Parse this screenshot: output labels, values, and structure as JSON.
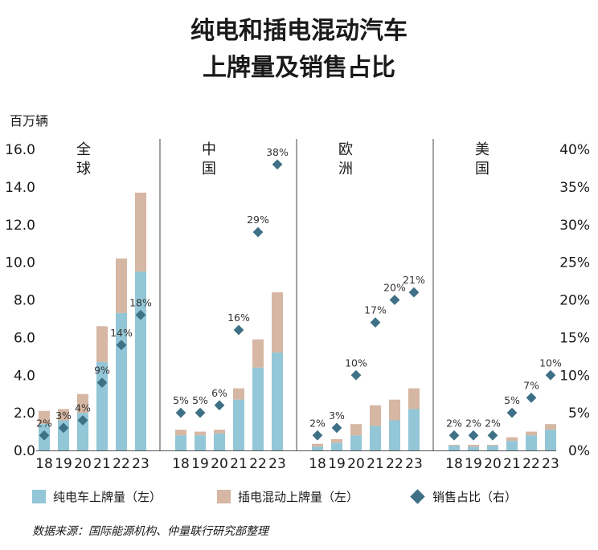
{
  "chart_data": {
    "type": "bar",
    "title_lines": [
      "纯电和插电混动汽车",
      "上牌量及销售占比"
    ],
    "y_left_unit": "百万辆",
    "y_left_ticks": [
      "0.0",
      "2.0",
      "4.0",
      "6.0",
      "8.0",
      "10.0",
      "12.0",
      "14.0",
      "16.0"
    ],
    "y_right_ticks": [
      "0%",
      "5%",
      "10%",
      "15%",
      "20%",
      "25%",
      "30%",
      "35%",
      "40%"
    ],
    "ylim_left": [
      0,
      16
    ],
    "ylim_right": [
      0,
      40
    ],
    "categories": [
      "18",
      "19",
      "20",
      "21",
      "22",
      "23"
    ],
    "series_names": {
      "bev": "纯电车上牌量（左）",
      "phev": "插电混动上牌量（左）",
      "share": "销售占比（右）"
    },
    "colors": {
      "bev": "#93c6d6",
      "phev": "#d6b7a3",
      "share": "#3e7086"
    },
    "panels": [
      {
        "name_lines": [
          "全",
          "球"
        ],
        "bev": [
          1.4,
          1.6,
          2.0,
          4.7,
          7.3,
          9.5
        ],
        "phev": [
          0.7,
          0.6,
          1.0,
          1.9,
          2.9,
          4.2
        ],
        "share": [
          2,
          3,
          4,
          9,
          14,
          18
        ],
        "share_labels": [
          "2%",
          "3%",
          "4%",
          "9%",
          "14%",
          "18%"
        ]
      },
      {
        "name_lines": [
          "中",
          "国"
        ],
        "bev": [
          0.8,
          0.8,
          0.9,
          2.7,
          4.4,
          5.2
        ],
        "phev": [
          0.3,
          0.2,
          0.2,
          0.6,
          1.5,
          3.2
        ],
        "share": [
          5,
          5,
          6,
          16,
          29,
          38
        ],
        "share_labels": [
          "5%",
          "5%",
          "6%",
          "16%",
          "29%",
          "38%"
        ]
      },
      {
        "name_lines": [
          "欧",
          "洲"
        ],
        "bev": [
          0.2,
          0.4,
          0.8,
          1.3,
          1.6,
          2.2
        ],
        "phev": [
          0.15,
          0.2,
          0.6,
          1.1,
          1.1,
          1.1
        ],
        "share": [
          2,
          3,
          10,
          17,
          20,
          21
        ],
        "share_labels": [
          "2%",
          "3%",
          "10%",
          "17%",
          "20%",
          "21%"
        ]
      },
      {
        "name_lines": [
          "美",
          "国"
        ],
        "bev": [
          0.25,
          0.2,
          0.25,
          0.5,
          0.8,
          1.1
        ],
        "phev": [
          0.05,
          0.1,
          0.05,
          0.2,
          0.2,
          0.3
        ],
        "share": [
          2,
          2,
          2,
          5,
          7,
          10
        ],
        "share_labels": [
          "2%",
          "2%",
          "2%",
          "5%",
          "7%",
          "10%"
        ]
      }
    ],
    "source": "数据来源：国际能源机构、仲量联行研究部整理"
  }
}
